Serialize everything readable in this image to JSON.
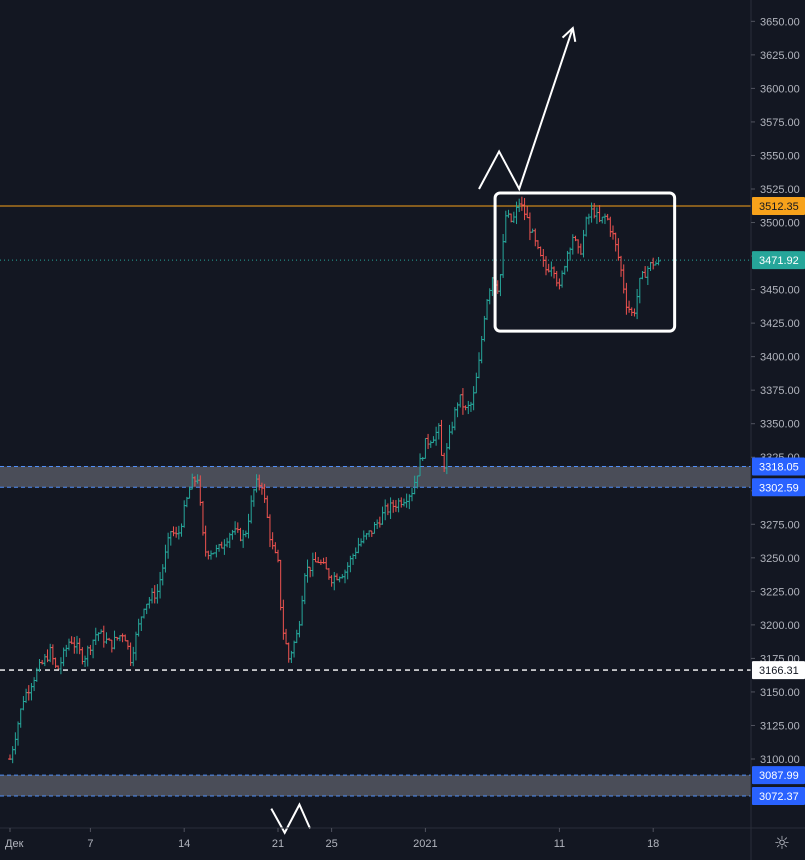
{
  "chart_data": {
    "type": "ohlc",
    "ylim": [
      3075,
      3665
    ],
    "y_ticks": [
      3100,
      3125,
      3150,
      3175,
      3200,
      3225,
      3250,
      3275,
      3300,
      3325,
      3350,
      3375,
      3400,
      3425,
      3450,
      3475,
      3500,
      3525,
      3550,
      3575,
      3600,
      3625,
      3650
    ],
    "y_tick_labels": [
      "3100.00",
      "3125.00",
      "3150.00",
      "3175.00",
      "3200.00",
      "3225.00",
      "3250.00",
      "3275.00",
      "3300.00",
      "3325.00",
      "3350.00",
      "3375.00",
      "3400.00",
      "3425.00",
      "3450.00",
      "3475.00",
      "3500.00",
      "3525.00",
      "3550.00",
      "3575.00",
      "3600.00",
      "3625.00",
      "3650.00"
    ],
    "x_ticks": [
      {
        "label": "Дек",
        "day": 0
      },
      {
        "label": "7",
        "day": 6
      },
      {
        "label": "14",
        "day": 13
      },
      {
        "label": "21",
        "day": 20
      },
      {
        "label": "25",
        "day": 24
      },
      {
        "label": "2021",
        "day": 31
      },
      {
        "label": "11",
        "day": 41
      },
      {
        "label": "18",
        "day": 48
      }
    ],
    "path": [
      [
        0.0,
        3100
      ],
      [
        1.0,
        3145
      ],
      [
        2.0,
        3165
      ],
      [
        3.0,
        3180
      ],
      [
        3.5,
        3165
      ],
      [
        4.5,
        3190
      ],
      [
        5.5,
        3175
      ],
      [
        6.5,
        3195
      ],
      [
        7.5,
        3185
      ],
      [
        8.5,
        3195
      ],
      [
        9.0,
        3175
      ],
      [
        10.0,
        3215
      ],
      [
        11.0,
        3225
      ],
      [
        12.0,
        3270
      ],
      [
        12.5,
        3265
      ],
      [
        13.5,
        3305
      ],
      [
        14.0,
        3310
      ],
      [
        14.5,
        3255
      ],
      [
        15.5,
        3255
      ],
      [
        16.5,
        3270
      ],
      [
        17.5,
        3265
      ],
      [
        18.3,
        3305
      ],
      [
        18.8,
        3305
      ],
      [
        19.5,
        3260
      ],
      [
        20.0,
        3245
      ],
      [
        20.3,
        3200
      ],
      [
        20.8,
        3175
      ],
      [
        21.5,
        3195
      ],
      [
        22.0,
        3240
      ],
      [
        23.0,
        3248
      ],
      [
        24.0,
        3235
      ],
      [
        25.0,
        3240
      ],
      [
        26.0,
        3260
      ],
      [
        27.0,
        3270
      ],
      [
        28.0,
        3285
      ],
      [
        29.5,
        3295
      ],
      [
        30.0,
        3300
      ],
      [
        31.0,
        3335
      ],
      [
        32.0,
        3345
      ],
      [
        32.3,
        3315
      ],
      [
        33.0,
        3350
      ],
      [
        33.5,
        3370
      ],
      [
        34.0,
        3360
      ],
      [
        34.5,
        3365
      ],
      [
        35.0,
        3395
      ],
      [
        35.5,
        3440
      ],
      [
        36.0,
        3460
      ],
      [
        36.5,
        3450
      ],
      [
        37.0,
        3505
      ],
      [
        37.5,
        3500
      ],
      [
        38.0,
        3515
      ],
      [
        38.5,
        3505
      ],
      [
        39.0,
        3490
      ],
      [
        39.5,
        3475
      ],
      [
        40.0,
        3465
      ],
      [
        40.5,
        3470
      ],
      [
        41.0,
        3450
      ],
      [
        41.5,
        3475
      ],
      [
        42.0,
        3490
      ],
      [
        42.5,
        3475
      ],
      [
        43.0,
        3500
      ],
      [
        43.5,
        3510
      ],
      [
        44.0,
        3500
      ],
      [
        44.5,
        3505
      ],
      [
        45.0,
        3490
      ],
      [
        45.5,
        3470
      ],
      [
        46.0,
        3440
      ],
      [
        46.5,
        3430
      ],
      [
        47.0,
        3455
      ],
      [
        47.5,
        3465
      ],
      [
        48.0,
        3470
      ],
      [
        48.5,
        3469
      ]
    ],
    "horizontal_lines": [
      {
        "value": 3512.35,
        "label": "3512.35",
        "color": "#f7a21b",
        "style": "solid",
        "badge_bg": "#f7a21b",
        "badge_fg": "#131722"
      },
      {
        "value": 3471.92,
        "label": "3471.92",
        "color": "#26a69a",
        "style": "dotted",
        "badge_bg": "#26a69a",
        "badge_fg": "#ffffff"
      },
      {
        "value": 3166.31,
        "label": "3166.31",
        "color": "#ffffff",
        "style": "dashed",
        "badge_bg": "#ffffff",
        "badge_fg": "#131722"
      }
    ],
    "zones": [
      {
        "top": 3318.05,
        "bottom": 3302.59,
        "labels": [
          "3318.05",
          "3302.59"
        ],
        "fill": "#5d606b",
        "border": "#4f8ef7"
      },
      {
        "top": 3087.99,
        "bottom": 3072.37,
        "labels": [
          "3087.99",
          "3072.37"
        ],
        "fill": "#5d606b",
        "border": "#4f8ef7"
      }
    ],
    "rectangle": {
      "day_start": 36.2,
      "day_end": 49.6,
      "price_top": 3522,
      "price_bottom": 3419,
      "color": "#ffffff"
    },
    "projection_arrow": [
      [
        35.0,
        3525
      ],
      [
        36.5,
        3553
      ],
      [
        38.0,
        3525
      ],
      [
        42.0,
        3645
      ]
    ],
    "bottom_zigzag": [
      [
        19.5,
        3063
      ],
      [
        20.5,
        3045
      ],
      [
        21.6,
        3066
      ],
      [
        22.4,
        3048
      ]
    ],
    "colors": {
      "up": "#26a69a",
      "down": "#ef5350",
      "grid": "#1f2330",
      "text": "#b2b5be",
      "background": "#131722"
    }
  },
  "ui": {
    "settings_icon": "gear-icon",
    "settings_glyph": "☼"
  }
}
